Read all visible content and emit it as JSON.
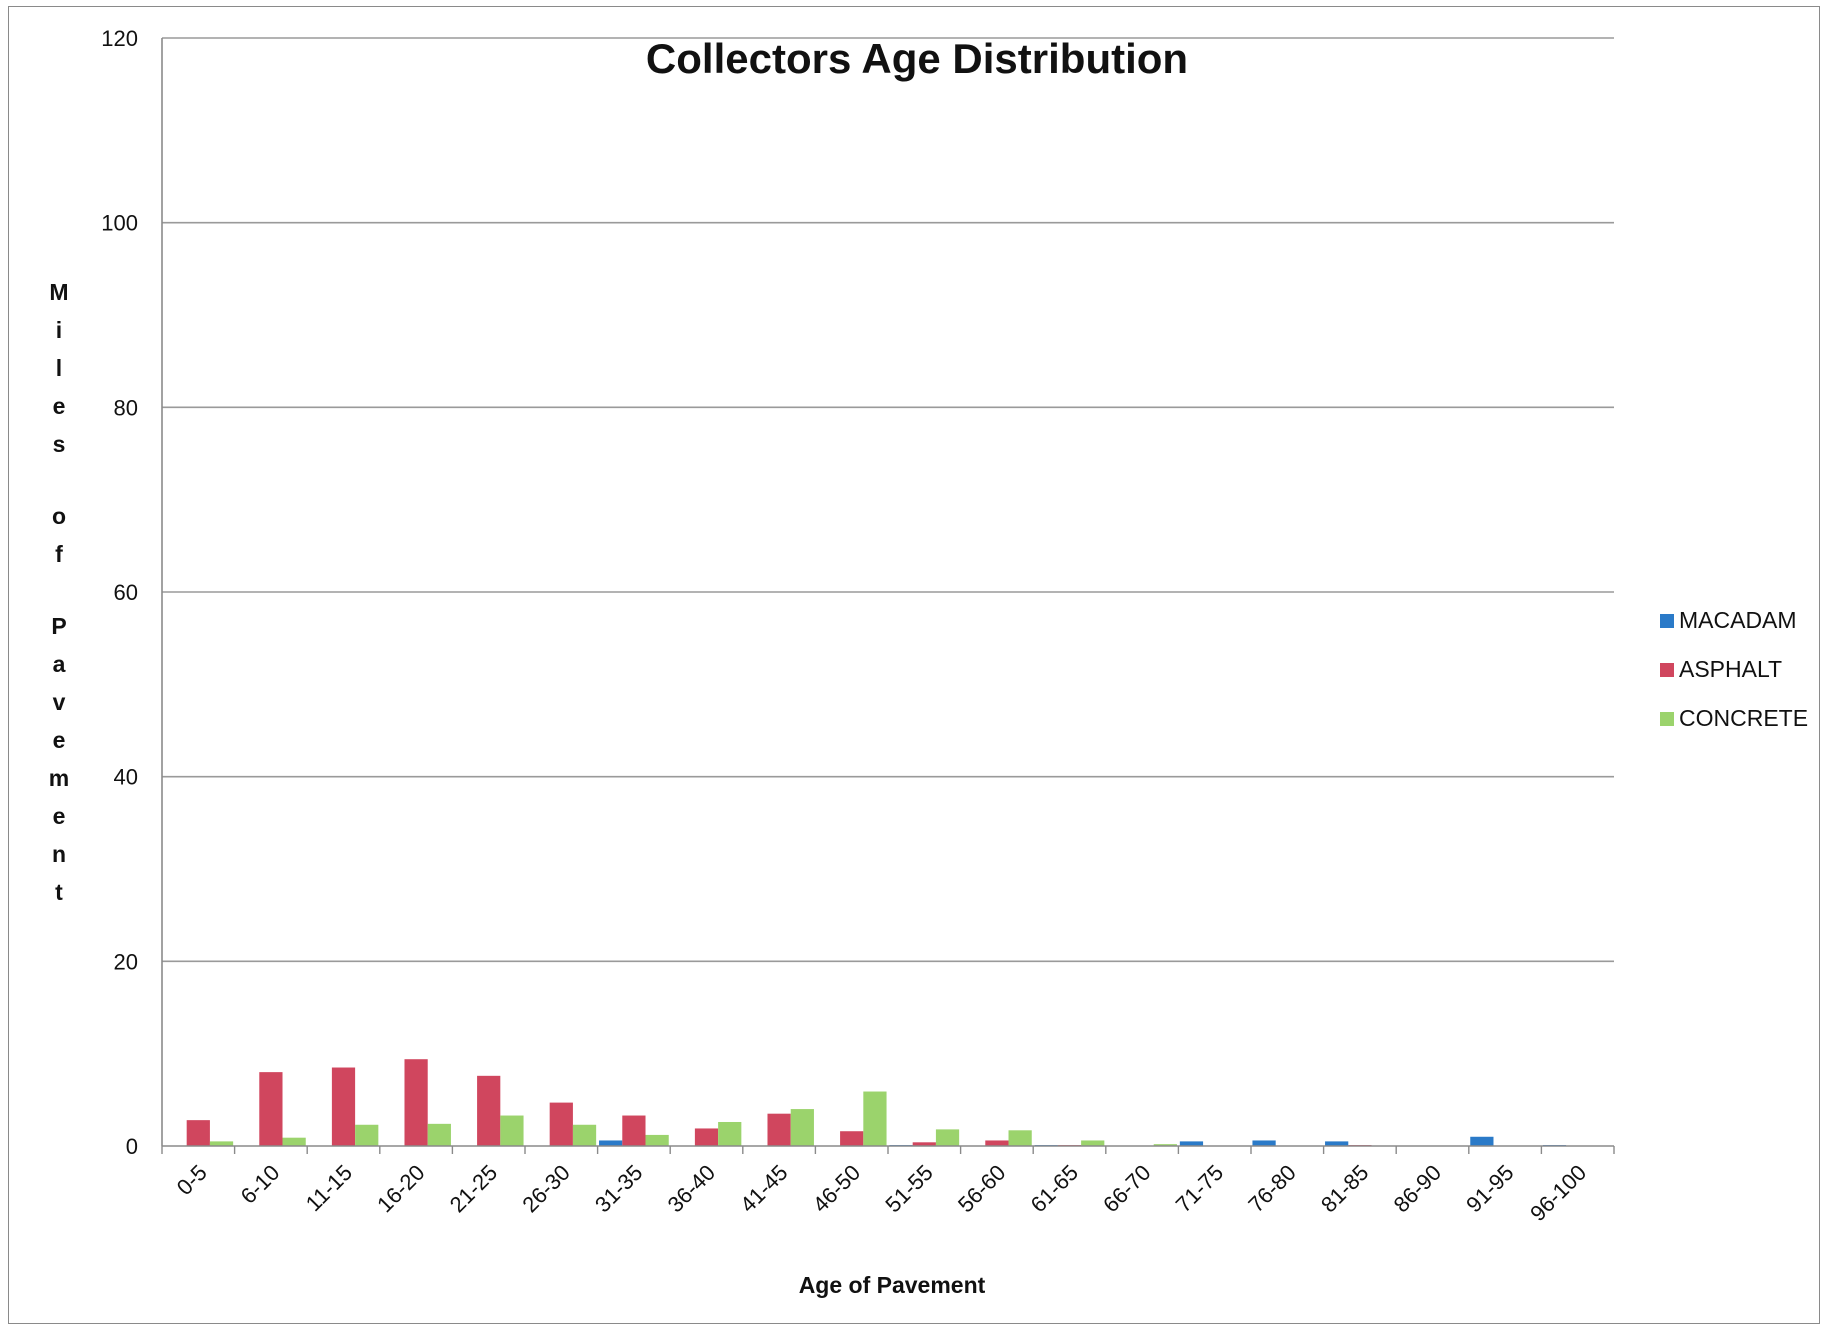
{
  "chart_data": {
    "type": "bar",
    "title": "Collectors Age Distribution",
    "xlabel": "Age of Pavement",
    "ylabel": "Miles of Pavement",
    "ylim": [
      0,
      120
    ],
    "yticks": [
      "0",
      "20",
      "40",
      "60",
      "80",
      "100",
      "120"
    ],
    "grid": true,
    "legend_position": "right",
    "categories": [
      "0-5",
      "6-10",
      "11-15",
      "16-20",
      "21-25",
      "26-30",
      "31-35",
      "36-40",
      "41-45",
      "46-50",
      "51-55",
      "56-60",
      "61-65",
      "66-70",
      "71-75",
      "76-80",
      "81-85",
      "86-90",
      "91-95",
      "96-100"
    ],
    "series": [
      {
        "name": "MACADAM",
        "color": "#2a7ac8",
        "values": [
          0,
          0,
          0,
          0,
          0,
          0,
          0.6,
          0,
          0,
          0,
          0.1,
          0,
          0.1,
          0,
          0.5,
          0.6,
          0.5,
          0,
          1.0,
          0.1
        ]
      },
      {
        "name": "ASPHALT",
        "color": "#d0465e",
        "values": [
          2.8,
          8.0,
          8.5,
          9.4,
          7.6,
          4.7,
          3.3,
          1.9,
          3.5,
          1.6,
          0.4,
          0.6,
          0.1,
          0,
          0,
          0,
          0.1,
          0,
          0,
          0
        ]
      },
      {
        "name": "CONCRETE",
        "color": "#9bd36c",
        "values": [
          0.5,
          0.9,
          2.3,
          2.4,
          3.3,
          2.3,
          1.2,
          2.6,
          4.0,
          5.9,
          1.8,
          1.7,
          0.6,
          0.2,
          0,
          0,
          0,
          0,
          0,
          0
        ]
      }
    ]
  }
}
